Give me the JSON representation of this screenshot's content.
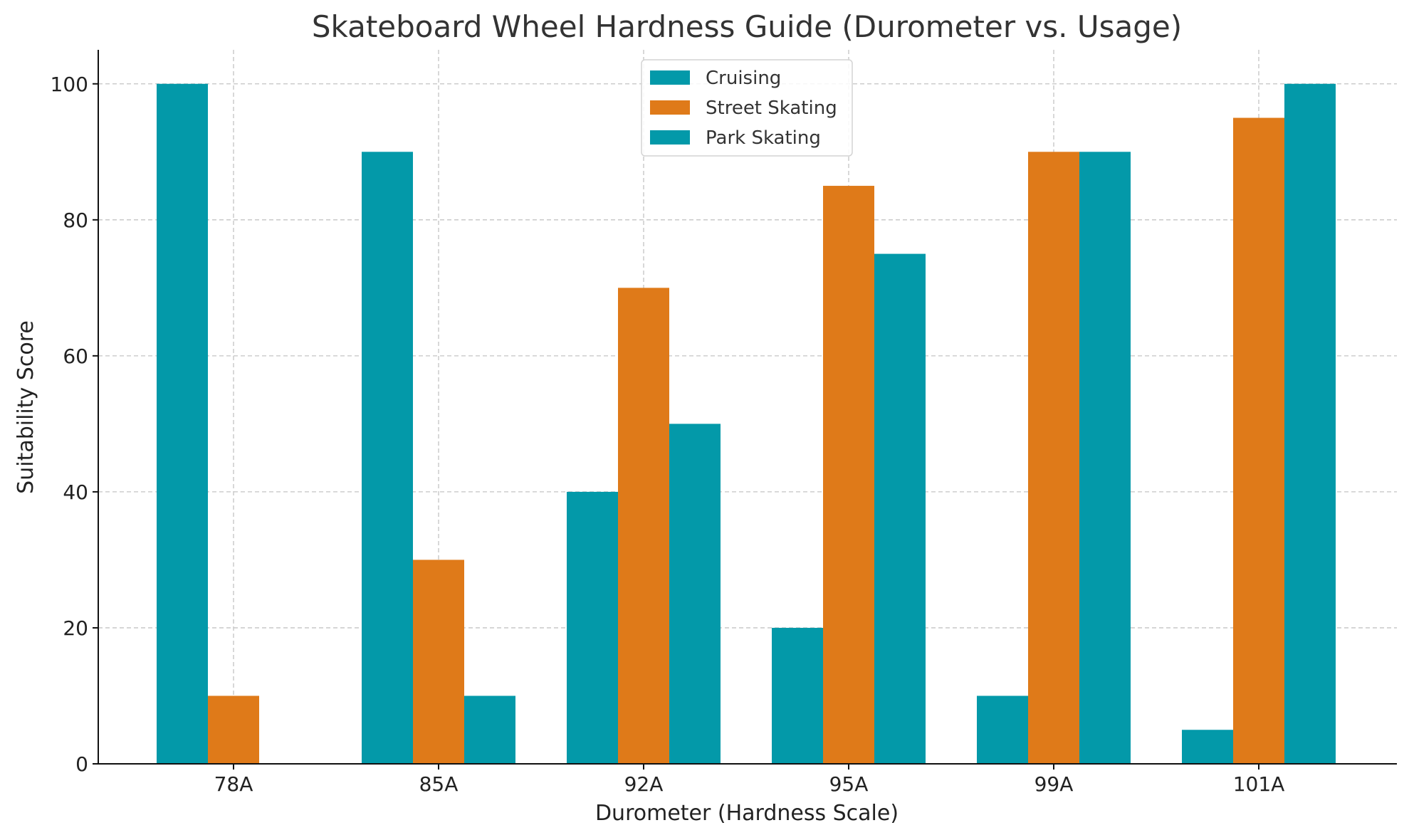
{
  "chart_data": {
    "type": "bar",
    "title": "Skateboard Wheel Hardness Guide (Durometer vs. Usage)",
    "xlabel": "Durometer (Hardness Scale)",
    "ylabel": "Suitability Score",
    "categories": [
      "78A",
      "85A",
      "92A",
      "95A",
      "99A",
      "101A"
    ],
    "series": [
      {
        "name": "Cruising",
        "values": [
          100,
          90,
          40,
          20,
          10,
          5
        ],
        "color": "#0399A9"
      },
      {
        "name": "Street Skating",
        "values": [
          10,
          30,
          70,
          85,
          90,
          95
        ],
        "color": "#DF7A19"
      },
      {
        "name": "Park Skating",
        "values": [
          0,
          10,
          50,
          75,
          90,
          100
        ],
        "color": "#0399A9"
      }
    ],
    "ylim": [
      0,
      105
    ],
    "yticks": [
      0,
      20,
      40,
      60,
      80,
      100
    ],
    "grid": true,
    "legend": "top-center"
  }
}
